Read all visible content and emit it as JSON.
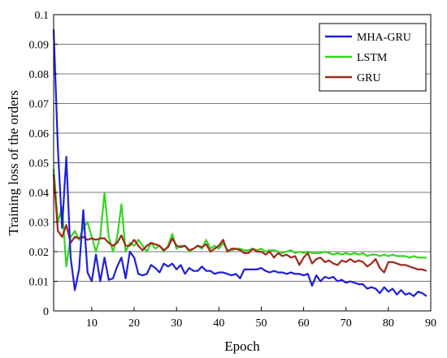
{
  "chart_data": {
    "type": "line",
    "title": "",
    "xlabel": "Epoch",
    "ylabel": "Training loss of the orders",
    "xlim": [
      1,
      90
    ],
    "ylim": [
      0,
      0.1
    ],
    "xticks": [
      "10",
      "20",
      "30",
      "40",
      "50",
      "60",
      "70",
      "80",
      "90"
    ],
    "yticks": [
      "0",
      "0.01",
      "0.02",
      "0.03",
      "0.04",
      "0.05",
      "0.06",
      "0.07",
      "0.08",
      "0.09",
      "0.1"
    ],
    "grid": "horizontal",
    "legend_position": "top-right",
    "x": [
      1,
      2,
      3,
      4,
      5,
      6,
      7,
      8,
      9,
      10,
      11,
      12,
      13,
      14,
      15,
      16,
      17,
      18,
      19,
      20,
      21,
      22,
      23,
      24,
      25,
      26,
      27,
      28,
      29,
      30,
      31,
      32,
      33,
      34,
      35,
      36,
      37,
      38,
      39,
      40,
      41,
      42,
      43,
      44,
      45,
      46,
      47,
      48,
      49,
      50,
      51,
      52,
      53,
      54,
      55,
      56,
      57,
      58,
      59,
      60,
      61,
      62,
      63,
      64,
      65,
      66,
      67,
      68,
      69,
      70,
      71,
      72,
      73,
      74,
      75,
      76,
      77,
      78,
      79,
      80,
      81,
      82,
      83,
      84,
      85,
      86,
      87,
      88,
      89
    ],
    "series": [
      {
        "name": "MHA-GRU",
        "color": "#1f1fd6",
        "values": [
          0.095,
          0.055,
          0.028,
          0.052,
          0.018,
          0.007,
          0.014,
          0.034,
          0.013,
          0.01,
          0.019,
          0.01,
          0.018,
          0.0105,
          0.011,
          0.015,
          0.018,
          0.011,
          0.02,
          0.018,
          0.0125,
          0.012,
          0.0125,
          0.0155,
          0.0145,
          0.013,
          0.016,
          0.015,
          0.016,
          0.014,
          0.0155,
          0.0125,
          0.0145,
          0.0135,
          0.0135,
          0.015,
          0.0135,
          0.0135,
          0.0125,
          0.013,
          0.013,
          0.0125,
          0.012,
          0.0125,
          0.011,
          0.014,
          0.014,
          0.014,
          0.014,
          0.0145,
          0.0135,
          0.013,
          0.0135,
          0.013,
          0.013,
          0.0125,
          0.013,
          0.0125,
          0.0125,
          0.012,
          0.0125,
          0.0085,
          0.012,
          0.01,
          0.0115,
          0.011,
          0.0115,
          0.01,
          0.0105,
          0.0095,
          0.01,
          0.0095,
          0.009,
          0.009,
          0.0075,
          0.008,
          0.0075,
          0.006,
          0.008,
          0.0065,
          0.0075,
          0.0055,
          0.007,
          0.0055,
          0.006,
          0.005,
          0.0065,
          0.006,
          0.005
        ]
      },
      {
        "name": "LSTM",
        "color": "#33d61f",
        "values": [
          0.048,
          0.03,
          0.035,
          0.015,
          0.025,
          0.027,
          0.024,
          0.028,
          0.03,
          0.025,
          0.02,
          0.025,
          0.04,
          0.025,
          0.02,
          0.025,
          0.036,
          0.02,
          0.023,
          0.022,
          0.024,
          0.022,
          0.02,
          0.023,
          0.021,
          0.022,
          0.02,
          0.022,
          0.026,
          0.021,
          0.022,
          0.022,
          0.02,
          0.021,
          0.022,
          0.021,
          0.024,
          0.021,
          0.022,
          0.021,
          0.023,
          0.0205,
          0.0205,
          0.021,
          0.021,
          0.0205,
          0.0205,
          0.021,
          0.0205,
          0.021,
          0.02,
          0.0205,
          0.0205,
          0.02,
          0.0195,
          0.02,
          0.0205,
          0.0195,
          0.02,
          0.0195,
          0.02,
          0.0195,
          0.0195,
          0.0195,
          0.02,
          0.0195,
          0.019,
          0.0195,
          0.019,
          0.0195,
          0.019,
          0.0195,
          0.019,
          0.0195,
          0.0185,
          0.019,
          0.019,
          0.0185,
          0.019,
          0.0185,
          0.019,
          0.0185,
          0.0185,
          0.0185,
          0.018,
          0.0185,
          0.018,
          0.018,
          0.018
        ]
      },
      {
        "name": "GRU",
        "color": "#a0281c",
        "values": [
          0.046,
          0.027,
          0.025,
          0.029,
          0.023,
          0.025,
          0.0245,
          0.025,
          0.024,
          0.0245,
          0.024,
          0.0245,
          0.0245,
          0.023,
          0.022,
          0.023,
          0.0255,
          0.022,
          0.022,
          0.024,
          0.022,
          0.0205,
          0.022,
          0.023,
          0.0225,
          0.022,
          0.0205,
          0.0215,
          0.0245,
          0.022,
          0.0215,
          0.022,
          0.0205,
          0.021,
          0.022,
          0.0215,
          0.0225,
          0.02,
          0.021,
          0.022,
          0.024,
          0.02,
          0.021,
          0.021,
          0.0205,
          0.0195,
          0.0195,
          0.021,
          0.02,
          0.02,
          0.019,
          0.02,
          0.018,
          0.0195,
          0.0185,
          0.019,
          0.018,
          0.0185,
          0.0155,
          0.018,
          0.0195,
          0.016,
          0.0175,
          0.018,
          0.0165,
          0.017,
          0.016,
          0.0155,
          0.017,
          0.0165,
          0.0175,
          0.0165,
          0.017,
          0.0165,
          0.015,
          0.016,
          0.0175,
          0.0145,
          0.013,
          0.0165,
          0.0165,
          0.016,
          0.0155,
          0.0155,
          0.015,
          0.0145,
          0.014,
          0.014,
          0.0135
        ]
      }
    ]
  }
}
